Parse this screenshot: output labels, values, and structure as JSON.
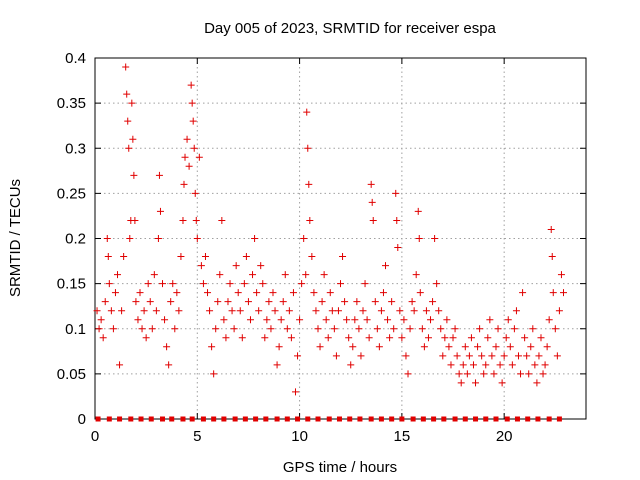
{
  "chart_data": {
    "type": "scatter",
    "title": "Day 005 of 2023, SRMTID for receiver espa",
    "xlabel": "GPS time / hours",
    "ylabel": "SRMTID / TECUs",
    "xlim": [
      0,
      24
    ],
    "ylim": [
      0,
      0.4
    ],
    "xticks": [
      0,
      5,
      10,
      15,
      20
    ],
    "yticks": [
      0,
      0.05,
      0.1,
      0.15,
      0.2,
      0.25,
      0.3,
      0.35,
      0.4
    ],
    "xtick_labels": [
      "0",
      "5",
      "10",
      "15",
      "20"
    ],
    "ytick_labels": [
      "0",
      "0.05",
      "0.1",
      "0.15",
      "0.2",
      "0.25",
      "0.3",
      "0.35",
      "0.4"
    ],
    "grid": true,
    "point_color": "#e00000",
    "marker": "plus",
    "baseline_markers": {
      "y": 0,
      "x": [
        0.15,
        0.7,
        1.2,
        1.75,
        2.25,
        2.75,
        3.3,
        3.75,
        4.3,
        4.75,
        5.3,
        5.8,
        6.3,
        6.85,
        7.35,
        7.85,
        8.35,
        8.9,
        9.4,
        9.9,
        10.4,
        10.9,
        11.45,
        11.95,
        12.45,
        12.95,
        13.5,
        14.0,
        14.5,
        15.0,
        15.55,
        16.05,
        16.55,
        17.05,
        17.6,
        18.1,
        18.6,
        19.1,
        19.6,
        20.15,
        20.65,
        21.15,
        21.65,
        22.2,
        22.7
      ]
    },
    "series": [
      {
        "name": "SRMTID",
        "points": [
          [
            0.1,
            0.12
          ],
          [
            0.2,
            0.1
          ],
          [
            0.3,
            0.11
          ],
          [
            0.4,
            0.09
          ],
          [
            0.5,
            0.13
          ],
          [
            0.6,
            0.2
          ],
          [
            0.65,
            0.18
          ],
          [
            0.7,
            0.15
          ],
          [
            0.8,
            0.12
          ],
          [
            0.9,
            0.1
          ],
          [
            1.0,
            0.14
          ],
          [
            1.1,
            0.16
          ],
          [
            1.2,
            0.06
          ],
          [
            1.3,
            0.12
          ],
          [
            1.4,
            0.18
          ],
          [
            1.5,
            0.39
          ],
          [
            1.55,
            0.36
          ],
          [
            1.6,
            0.33
          ],
          [
            1.65,
            0.3
          ],
          [
            1.7,
            0.2
          ],
          [
            1.75,
            0.22
          ],
          [
            1.8,
            0.35
          ],
          [
            1.85,
            0.31
          ],
          [
            1.9,
            0.27
          ],
          [
            1.95,
            0.22
          ],
          [
            2.0,
            0.13
          ],
          [
            2.1,
            0.11
          ],
          [
            2.2,
            0.14
          ],
          [
            2.3,
            0.1
          ],
          [
            2.4,
            0.12
          ],
          [
            2.5,
            0.09
          ],
          [
            2.6,
            0.15
          ],
          [
            2.7,
            0.13
          ],
          [
            2.8,
            0.1
          ],
          [
            2.9,
            0.16
          ],
          [
            3.0,
            0.12
          ],
          [
            3.1,
            0.2
          ],
          [
            3.15,
            0.27
          ],
          [
            3.2,
            0.23
          ],
          [
            3.3,
            0.15
          ],
          [
            3.4,
            0.11
          ],
          [
            3.5,
            0.08
          ],
          [
            3.6,
            0.06
          ],
          [
            3.7,
            0.13
          ],
          [
            3.8,
            0.15
          ],
          [
            3.9,
            0.1
          ],
          [
            4.0,
            0.14
          ],
          [
            4.1,
            0.12
          ],
          [
            4.2,
            0.18
          ],
          [
            4.3,
            0.22
          ],
          [
            4.35,
            0.26
          ],
          [
            4.4,
            0.29
          ],
          [
            4.5,
            0.31
          ],
          [
            4.6,
            0.28
          ],
          [
            4.7,
            0.37
          ],
          [
            4.75,
            0.35
          ],
          [
            4.8,
            0.33
          ],
          [
            4.85,
            0.3
          ],
          [
            4.9,
            0.25
          ],
          [
            4.95,
            0.22
          ],
          [
            5.0,
            0.2
          ],
          [
            5.1,
            0.29
          ],
          [
            5.2,
            0.17
          ],
          [
            5.3,
            0.15
          ],
          [
            5.4,
            0.18
          ],
          [
            5.5,
            0.14
          ],
          [
            5.6,
            0.12
          ],
          [
            5.7,
            0.08
          ],
          [
            5.8,
            0.05
          ],
          [
            5.9,
            0.1
          ],
          [
            6.0,
            0.13
          ],
          [
            6.1,
            0.16
          ],
          [
            6.2,
            0.22
          ],
          [
            6.3,
            0.11
          ],
          [
            6.4,
            0.09
          ],
          [
            6.5,
            0.13
          ],
          [
            6.6,
            0.15
          ],
          [
            6.7,
            0.12
          ],
          [
            6.8,
            0.1
          ],
          [
            6.9,
            0.17
          ],
          [
            7.0,
            0.14
          ],
          [
            7.1,
            0.12
          ],
          [
            7.2,
            0.09
          ],
          [
            7.3,
            0.15
          ],
          [
            7.4,
            0.18
          ],
          [
            7.5,
            0.13
          ],
          [
            7.6,
            0.11
          ],
          [
            7.7,
            0.16
          ],
          [
            7.8,
            0.2
          ],
          [
            7.9,
            0.14
          ],
          [
            8.0,
            0.12
          ],
          [
            8.1,
            0.17
          ],
          [
            8.2,
            0.15
          ],
          [
            8.3,
            0.09
          ],
          [
            8.4,
            0.11
          ],
          [
            8.5,
            0.13
          ],
          [
            8.6,
            0.1
          ],
          [
            8.7,
            0.14
          ],
          [
            8.8,
            0.12
          ],
          [
            8.9,
            0.06
          ],
          [
            9.0,
            0.08
          ],
          [
            9.1,
            0.11
          ],
          [
            9.2,
            0.13
          ],
          [
            9.3,
            0.16
          ],
          [
            9.4,
            0.1
          ],
          [
            9.5,
            0.12
          ],
          [
            9.6,
            0.09
          ],
          [
            9.7,
            0.14
          ],
          [
            9.8,
            0.03
          ],
          [
            9.9,
            0.07
          ],
          [
            10.0,
            0.11
          ],
          [
            10.1,
            0.15
          ],
          [
            10.2,
            0.2
          ],
          [
            10.3,
            0.16
          ],
          [
            10.35,
            0.34
          ],
          [
            10.4,
            0.3
          ],
          [
            10.45,
            0.26
          ],
          [
            10.5,
            0.22
          ],
          [
            10.6,
            0.18
          ],
          [
            10.7,
            0.14
          ],
          [
            10.8,
            0.12
          ],
          [
            10.9,
            0.1
          ],
          [
            11.0,
            0.08
          ],
          [
            11.1,
            0.13
          ],
          [
            11.2,
            0.16
          ],
          [
            11.3,
            0.11
          ],
          [
            11.4,
            0.09
          ],
          [
            11.5,
            0.14
          ],
          [
            11.6,
            0.12
          ],
          [
            11.7,
            0.1
          ],
          [
            11.8,
            0.07
          ],
          [
            11.9,
            0.12
          ],
          [
            12.0,
            0.15
          ],
          [
            12.1,
            0.18
          ],
          [
            12.2,
            0.13
          ],
          [
            12.3,
            0.11
          ],
          [
            12.4,
            0.09
          ],
          [
            12.5,
            0.06
          ],
          [
            12.6,
            0.08
          ],
          [
            12.7,
            0.11
          ],
          [
            12.8,
            0.13
          ],
          [
            12.9,
            0.1
          ],
          [
            13.0,
            0.07
          ],
          [
            13.1,
            0.12
          ],
          [
            13.2,
            0.15
          ],
          [
            13.3,
            0.11
          ],
          [
            13.4,
            0.09
          ],
          [
            13.5,
            0.26
          ],
          [
            13.55,
            0.24
          ],
          [
            13.6,
            0.22
          ],
          [
            13.7,
            0.13
          ],
          [
            13.8,
            0.1
          ],
          [
            13.9,
            0.08
          ],
          [
            14.0,
            0.12
          ],
          [
            14.1,
            0.14
          ],
          [
            14.2,
            0.17
          ],
          [
            14.3,
            0.11
          ],
          [
            14.4,
            0.09
          ],
          [
            14.5,
            0.13
          ],
          [
            14.6,
            0.1
          ],
          [
            14.7,
            0.25
          ],
          [
            14.75,
            0.22
          ],
          [
            14.8,
            0.19
          ],
          [
            14.9,
            0.12
          ],
          [
            15.0,
            0.09
          ],
          [
            15.1,
            0.11
          ],
          [
            15.2,
            0.07
          ],
          [
            15.3,
            0.05
          ],
          [
            15.4,
            0.1
          ],
          [
            15.5,
            0.13
          ],
          [
            15.6,
            0.12
          ],
          [
            15.7,
            0.16
          ],
          [
            15.8,
            0.23
          ],
          [
            15.85,
            0.2
          ],
          [
            15.9,
            0.14
          ],
          [
            16.0,
            0.1
          ],
          [
            16.1,
            0.08
          ],
          [
            16.2,
            0.12
          ],
          [
            16.3,
            0.09
          ],
          [
            16.4,
            0.11
          ],
          [
            16.5,
            0.13
          ],
          [
            16.6,
            0.2
          ],
          [
            16.7,
            0.15
          ],
          [
            16.8,
            0.12
          ],
          [
            16.9,
            0.1
          ],
          [
            17.0,
            0.07
          ],
          [
            17.1,
            0.09
          ],
          [
            17.2,
            0.11
          ],
          [
            17.3,
            0.08
          ],
          [
            17.4,
            0.06
          ],
          [
            17.5,
            0.09
          ],
          [
            17.6,
            0.1
          ],
          [
            17.7,
            0.07
          ],
          [
            17.8,
            0.05
          ],
          [
            17.9,
            0.04
          ],
          [
            18.0,
            0.06
          ],
          [
            18.1,
            0.08
          ],
          [
            18.2,
            0.05
          ],
          [
            18.3,
            0.07
          ],
          [
            18.4,
            0.09
          ],
          [
            18.5,
            0.06
          ],
          [
            18.6,
            0.04
          ],
          [
            18.7,
            0.08
          ],
          [
            18.8,
            0.1
          ],
          [
            18.9,
            0.07
          ],
          [
            19.0,
            0.05
          ],
          [
            19.1,
            0.06
          ],
          [
            19.2,
            0.09
          ],
          [
            19.3,
            0.11
          ],
          [
            19.4,
            0.07
          ],
          [
            19.5,
            0.05
          ],
          [
            19.6,
            0.08
          ],
          [
            19.7,
            0.1
          ],
          [
            19.8,
            0.06
          ],
          [
            19.9,
            0.04
          ],
          [
            20.0,
            0.07
          ],
          [
            20.1,
            0.09
          ],
          [
            20.2,
            0.11
          ],
          [
            20.3,
            0.08
          ],
          [
            20.4,
            0.06
          ],
          [
            20.5,
            0.1
          ],
          [
            20.6,
            0.12
          ],
          [
            20.7,
            0.07
          ],
          [
            20.8,
            0.05
          ],
          [
            20.9,
            0.14
          ],
          [
            21.0,
            0.09
          ],
          [
            21.1,
            0.07
          ],
          [
            21.2,
            0.05
          ],
          [
            21.3,
            0.08
          ],
          [
            21.4,
            0.1
          ],
          [
            21.5,
            0.06
          ],
          [
            21.6,
            0.04
          ],
          [
            21.7,
            0.07
          ],
          [
            21.8,
            0.09
          ],
          [
            21.9,
            0.05
          ],
          [
            22.0,
            0.06
          ],
          [
            22.1,
            0.08
          ],
          [
            22.2,
            0.11
          ],
          [
            22.3,
            0.21
          ],
          [
            22.35,
            0.18
          ],
          [
            22.4,
            0.14
          ],
          [
            22.5,
            0.1
          ],
          [
            22.6,
            0.07
          ],
          [
            22.7,
            0.12
          ],
          [
            22.8,
            0.16
          ],
          [
            22.9,
            0.14
          ]
        ]
      }
    ]
  }
}
